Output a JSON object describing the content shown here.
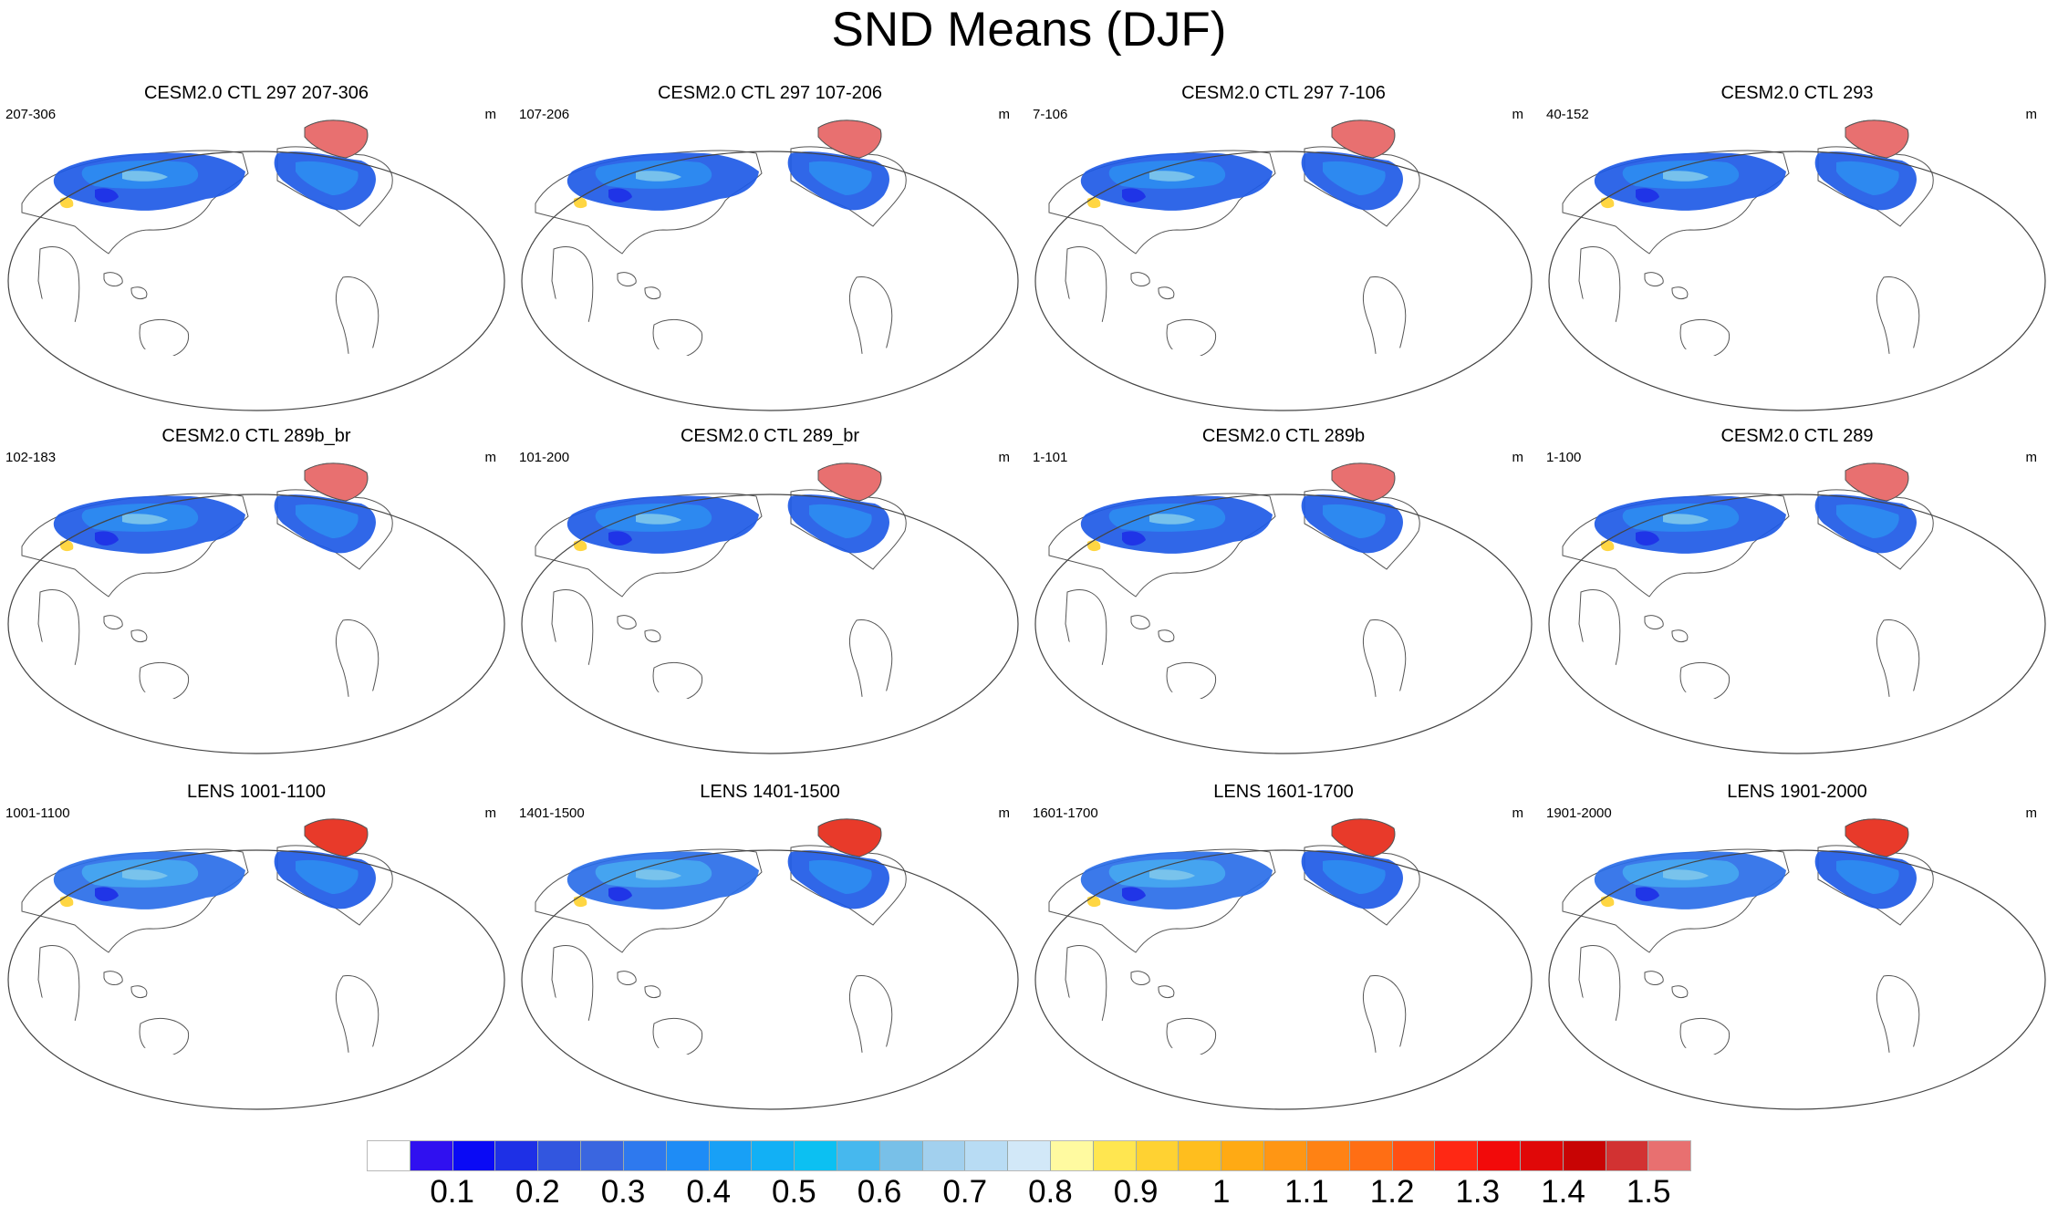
{
  "title": "SND Means (DJF)",
  "panels": [
    {
      "title": "CESM2.0 CTL 297 207-306",
      "left": "207-306",
      "right": "m",
      "variant": "ctl"
    },
    {
      "title": "CESM2.0 CTL 297 107-206",
      "left": "107-206",
      "right": "m",
      "variant": "ctl"
    },
    {
      "title": "CESM2.0 CTL 297 7-106",
      "left": "7-106",
      "right": "m",
      "variant": "ctl"
    },
    {
      "title": "CESM2.0 CTL 293",
      "left": "40-152",
      "right": "m",
      "variant": "ctl"
    },
    {
      "title": "CESM2.0 CTL 289b_br",
      "left": "102-183",
      "right": "m",
      "variant": "ctl"
    },
    {
      "title": "CESM2.0 CTL 289_br",
      "left": "101-200",
      "right": "m",
      "variant": "ctl"
    },
    {
      "title": "CESM2.0 CTL 289b",
      "left": "1-101",
      "right": "m",
      "variant": "ctl"
    },
    {
      "title": "CESM2.0 CTL 289",
      "left": "1-100",
      "right": "m",
      "variant": "ctl"
    },
    {
      "title": "LENS 1001-1100",
      "left": "1001-1100",
      "right": "m",
      "variant": "lens"
    },
    {
      "title": "LENS 1401-1500",
      "left": "1401-1500",
      "right": "m",
      "variant": "lens"
    },
    {
      "title": "LENS 1601-1700",
      "left": "1601-1700",
      "right": "m",
      "variant": "lens"
    },
    {
      "title": "LENS 1901-2000",
      "left": "1901-2000",
      "right": "m",
      "variant": "lens"
    }
  ],
  "colorbar": {
    "colors": [
      "#ffffff",
      "#3010f0",
      "#0a0af5",
      "#1e30e6",
      "#3256df",
      "#3a66e0",
      "#2e79ee",
      "#1e8cf6",
      "#18a0f6",
      "#12b0f5",
      "#0cc0f2",
      "#46b8ee",
      "#78c0e8",
      "#a2d0ee",
      "#b8dcf4",
      "#d2e8f8",
      "#fffaa0",
      "#ffe650",
      "#ffd232",
      "#ffbe1e",
      "#ffaa14",
      "#ff9614",
      "#ff8214",
      "#ff6e14",
      "#ff5014",
      "#ff2814",
      "#f20a0a",
      "#e00808",
      "#c80404",
      "#d23232",
      "#e87070"
    ],
    "labels": [
      "0.1",
      "0.2",
      "0.3",
      "0.4",
      "0.5",
      "0.6",
      "0.7",
      "0.8",
      "0.9",
      "1",
      "1.1",
      "1.2",
      "1.3",
      "1.4",
      "1.5"
    ]
  }
}
